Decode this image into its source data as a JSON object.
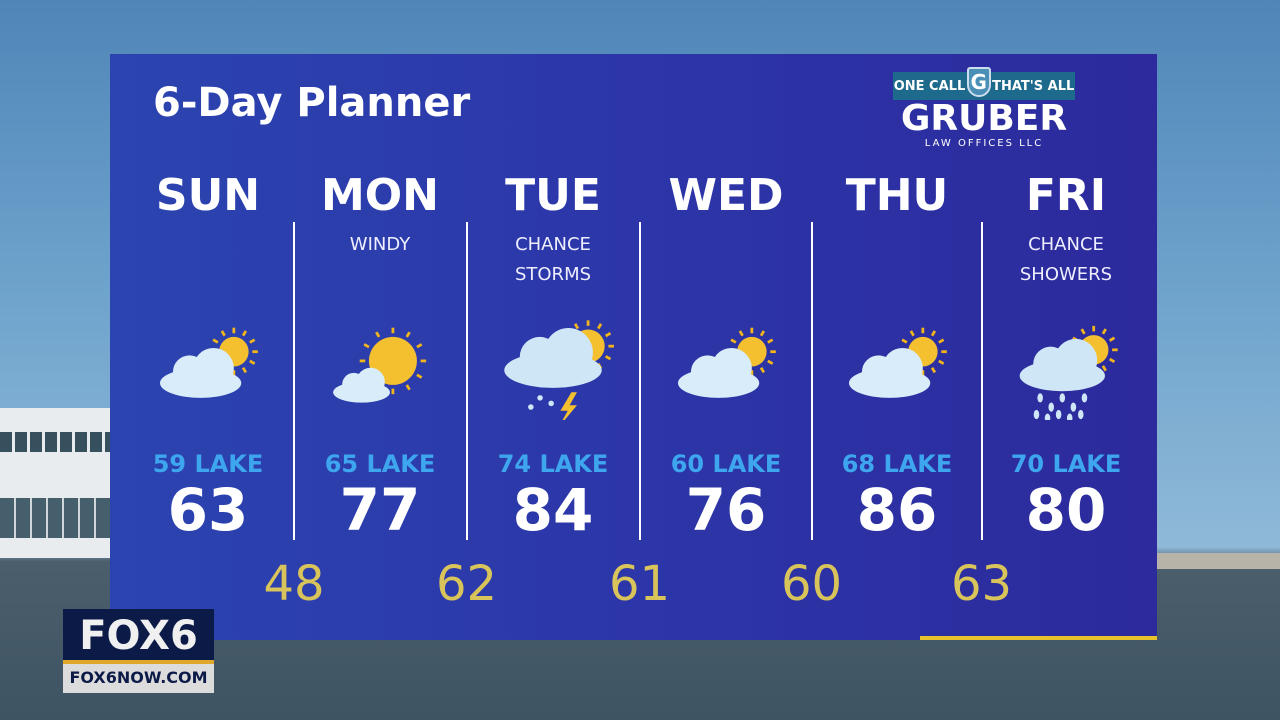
{
  "title": "6-Day Planner",
  "sponsor": {
    "tagline_left": "ONE CALL",
    "shield_letter": "G",
    "tagline_right": "THAT'S ALL",
    "name": "GRUBER",
    "subtitle": "LAW OFFICES LLC"
  },
  "days": [
    {
      "day": "SUN",
      "desc1": "",
      "desc2": "",
      "icon": "partly-cloudy-icon",
      "lake": "59 LAKE",
      "high": "63"
    },
    {
      "day": "MON",
      "desc1": "WINDY",
      "desc2": "",
      "icon": "mostly-sunny-icon",
      "lake": "65 LAKE",
      "high": "77"
    },
    {
      "day": "TUE",
      "desc1": "CHANCE",
      "desc2": "STORMS",
      "icon": "thunderstorm-icon",
      "lake": "74 LAKE",
      "high": "84"
    },
    {
      "day": "WED",
      "desc1": "",
      "desc2": "",
      "icon": "partly-cloudy-icon",
      "lake": "60 LAKE",
      "high": "76"
    },
    {
      "day": "THU",
      "desc1": "",
      "desc2": "",
      "icon": "partly-cloudy-icon",
      "lake": "68 LAKE",
      "high": "86"
    },
    {
      "day": "FRI",
      "desc1": "CHANCE",
      "desc2": "SHOWERS",
      "icon": "rain-showers-icon",
      "lake": "70 LAKE",
      "high": "80"
    }
  ],
  "lows": [
    "48",
    "62",
    "61",
    "60",
    "63"
  ],
  "station": {
    "logo": "FOX6",
    "url": "FOX6NOW.COM"
  },
  "colors": {
    "panel": "#2c3aa8",
    "lake": "#3ea6ee",
    "low": "#d8c45a",
    "accent": "#e8c22a"
  }
}
